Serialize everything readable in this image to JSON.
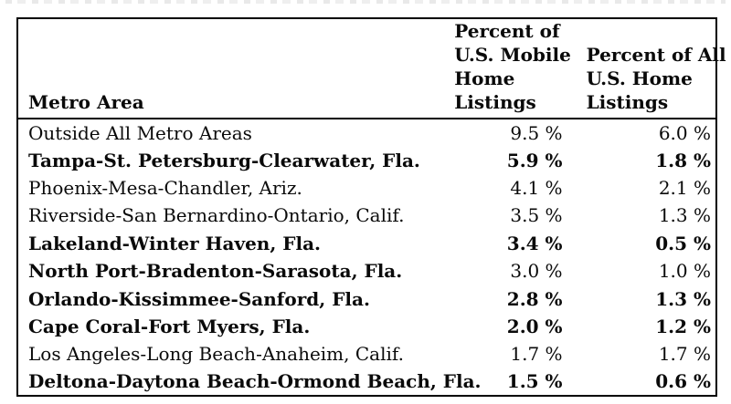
{
  "chart_data": {
    "type": "table",
    "columns": [
      "Metro Area",
      "Percent of\nU.S. Mobile\nHome\nListings",
      "Percent of All\nU.S. Home\nListings"
    ],
    "rows": [
      {
        "metro": "Outside All Metro Areas",
        "mobile_pct": "9.5 %",
        "all_pct": "6.0 %",
        "metro_bold": false,
        "values_bold": false
      },
      {
        "metro": "Tampa-St. Petersburg-Clearwater, Fla.",
        "mobile_pct": "5.9 %",
        "all_pct": "1.8 %",
        "metro_bold": true,
        "values_bold": true
      },
      {
        "metro": "Phoenix-Mesa-Chandler, Ariz.",
        "mobile_pct": "4.1 %",
        "all_pct": "2.1 %",
        "metro_bold": false,
        "values_bold": false
      },
      {
        "metro": "Riverside-San Bernardino-Ontario, Calif.",
        "mobile_pct": "3.5 %",
        "all_pct": "1.3 %",
        "metro_bold": false,
        "values_bold": false
      },
      {
        "metro": "Lakeland-Winter Haven, Fla.",
        "mobile_pct": "3.4 %",
        "all_pct": "0.5 %",
        "metro_bold": true,
        "values_bold": true
      },
      {
        "metro": "North Port-Bradenton-Sarasota, Fla.",
        "mobile_pct": "3.0 %",
        "all_pct": "1.0 %",
        "metro_bold": true,
        "values_bold": false
      },
      {
        "metro": "Orlando-Kissimmee-Sanford, Fla.",
        "mobile_pct": "2.8 %",
        "all_pct": "1.3 %",
        "metro_bold": true,
        "values_bold": true
      },
      {
        "metro": "Cape Coral-Fort Myers, Fla.",
        "mobile_pct": "2.0 %",
        "all_pct": "1.2 %",
        "metro_bold": true,
        "values_bold": true
      },
      {
        "metro": "Los Angeles-Long Beach-Anaheim, Calif.",
        "mobile_pct": "1.7 %",
        "all_pct": "1.7 %",
        "metro_bold": false,
        "values_bold": false
      },
      {
        "metro": "Deltona-Daytona Beach-Ormond Beach, Fla.",
        "mobile_pct": "1.5 %",
        "all_pct": "0.6 %",
        "metro_bold": true,
        "values_bold": true
      }
    ],
    "layout": {
      "grid": "outer border, header separator only; no internal column or row lines",
      "value_alignment": "right",
      "header_alignment": "bottom-left",
      "colors": {
        "text": "#0a0a0a",
        "border": "#000000",
        "background": "#ffffff"
      }
    }
  }
}
